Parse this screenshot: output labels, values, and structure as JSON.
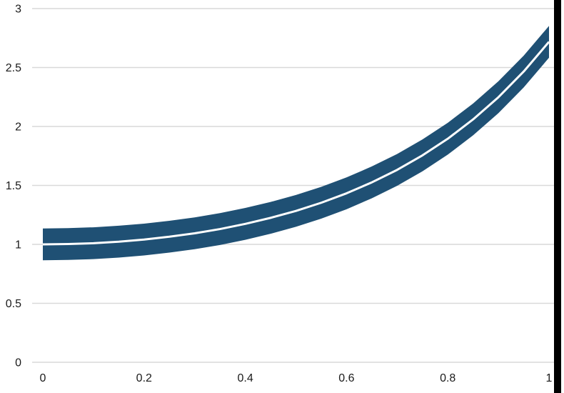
{
  "chart_data": {
    "type": "area",
    "title": "",
    "xlabel": "",
    "ylabel": "",
    "grid": true,
    "legend": false,
    "xlim": [
      0,
      1
    ],
    "ylim": [
      0,
      3
    ],
    "x_ticks": [
      0,
      0.2,
      0.4,
      0.6,
      0.8,
      1
    ],
    "x_tick_labels": [
      "0",
      "0.2",
      "0.4",
      "0.6",
      "0.8",
      "1"
    ],
    "y_ticks": [
      0,
      0.5,
      1,
      1.5,
      2,
      2.5,
      3
    ],
    "y_tick_labels": [
      "0",
      "0.5",
      "1",
      "1.5",
      "2",
      "2.5",
      "3"
    ],
    "x": [
      0,
      0.05,
      0.1,
      0.15,
      0.2,
      0.25,
      0.3,
      0.35,
      0.4,
      0.45,
      0.5,
      0.55,
      0.6,
      0.65,
      0.7,
      0.75,
      0.8,
      0.85,
      0.9,
      0.95,
      1
    ],
    "series": [
      {
        "name": "upper_bound",
        "values": [
          1.135,
          1.138,
          1.145,
          1.158,
          1.176,
          1.2,
          1.229,
          1.265,
          1.309,
          1.36,
          1.419,
          1.488,
          1.568,
          1.661,
          1.767,
          1.89,
          2.031,
          2.195,
          2.383,
          2.601,
          2.853
        ]
      },
      {
        "name": "mean",
        "values": [
          1.0,
          1.003,
          1.01,
          1.023,
          1.041,
          1.065,
          1.094,
          1.13,
          1.174,
          1.225,
          1.284,
          1.353,
          1.433,
          1.526,
          1.632,
          1.755,
          1.896,
          2.06,
          2.248,
          2.466,
          2.718
        ]
      },
      {
        "name": "lower_bound",
        "values": [
          0.865,
          0.868,
          0.875,
          0.888,
          0.906,
          0.93,
          0.959,
          0.995,
          1.039,
          1.09,
          1.149,
          1.218,
          1.298,
          1.391,
          1.497,
          1.62,
          1.761,
          1.925,
          2.113,
          2.331,
          2.583
        ]
      }
    ],
    "colors": {
      "band": "#1f5074",
      "mean_line": "#ffffff",
      "grid": "#d9d9d9",
      "tick_label": "#1a1a1a",
      "background": "#ffffff",
      "right_edge_bar": "#000000"
    }
  }
}
